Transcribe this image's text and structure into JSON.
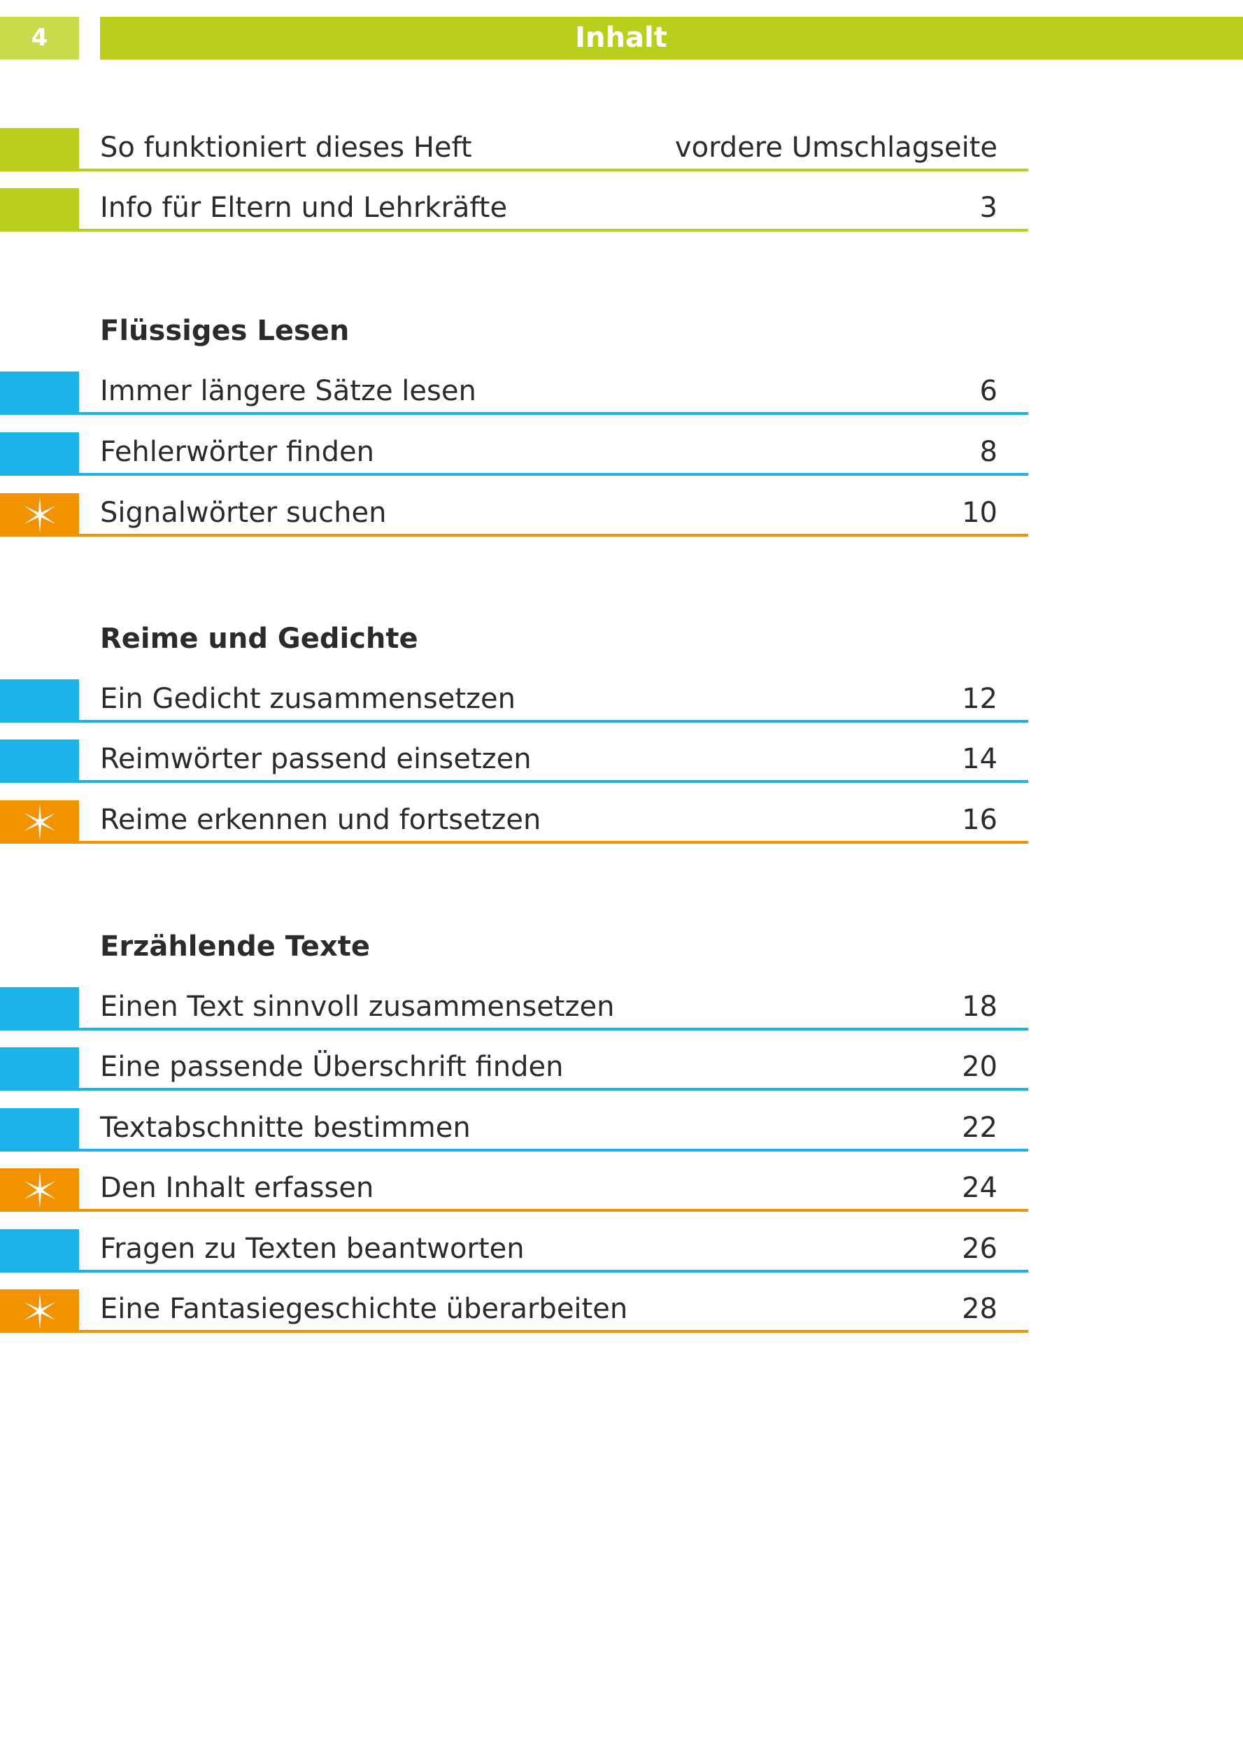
{
  "header": {
    "page_number": "4",
    "title": "Inhalt"
  },
  "colors": {
    "green": "#b9cf1c",
    "light_green": "#c9da4a",
    "blue": "#1ab3ea",
    "orange": "#f39200"
  },
  "intro": [
    {
      "label": "So funktioniert dieses Heft",
      "page": "vordere Umschlagseite",
      "color": "green"
    },
    {
      "label": "Info für Eltern und Lehrkräfte",
      "page": "3",
      "color": "green"
    }
  ],
  "sections": [
    {
      "heading": "Flüssiges Lesen",
      "items": [
        {
          "label": "Immer längere Sätze lesen",
          "page": "6",
          "color": "blue",
          "icon": ""
        },
        {
          "label": "Fehlerwörter finden",
          "page": "8",
          "color": "blue",
          "icon": ""
        },
        {
          "label": "Signalwörter suchen",
          "page": "10",
          "color": "orange",
          "icon": "star-icon"
        }
      ]
    },
    {
      "heading": "Reime und Gedichte",
      "items": [
        {
          "label": "Ein Gedicht zusammensetzen",
          "page": "12",
          "color": "blue",
          "icon": ""
        },
        {
          "label": "Reimwörter passend einsetzen",
          "page": "14",
          "color": "blue",
          "icon": ""
        },
        {
          "label": "Reime erkennen und fortsetzen",
          "page": "16",
          "color": "orange",
          "icon": "star-icon"
        }
      ]
    },
    {
      "heading": "Erzählende Texte",
      "items": [
        {
          "label": "Einen Text sinnvoll zusammensetzen",
          "page": "18",
          "color": "blue",
          "icon": ""
        },
        {
          "label": "Eine passende Überschrift finden",
          "page": "20",
          "color": "blue",
          "icon": ""
        },
        {
          "label": "Textabschnitte bestimmen",
          "page": "22",
          "color": "blue",
          "icon": ""
        },
        {
          "label": "Den Inhalt erfassen",
          "page": "24",
          "color": "orange",
          "icon": "star-icon"
        },
        {
          "label": "Fragen zu Texten beantworten",
          "page": "26",
          "color": "blue",
          "icon": ""
        },
        {
          "label": "Eine Fantasiegeschichte überarbeiten",
          "page": "28",
          "color": "orange",
          "icon": "star-icon"
        }
      ]
    }
  ]
}
